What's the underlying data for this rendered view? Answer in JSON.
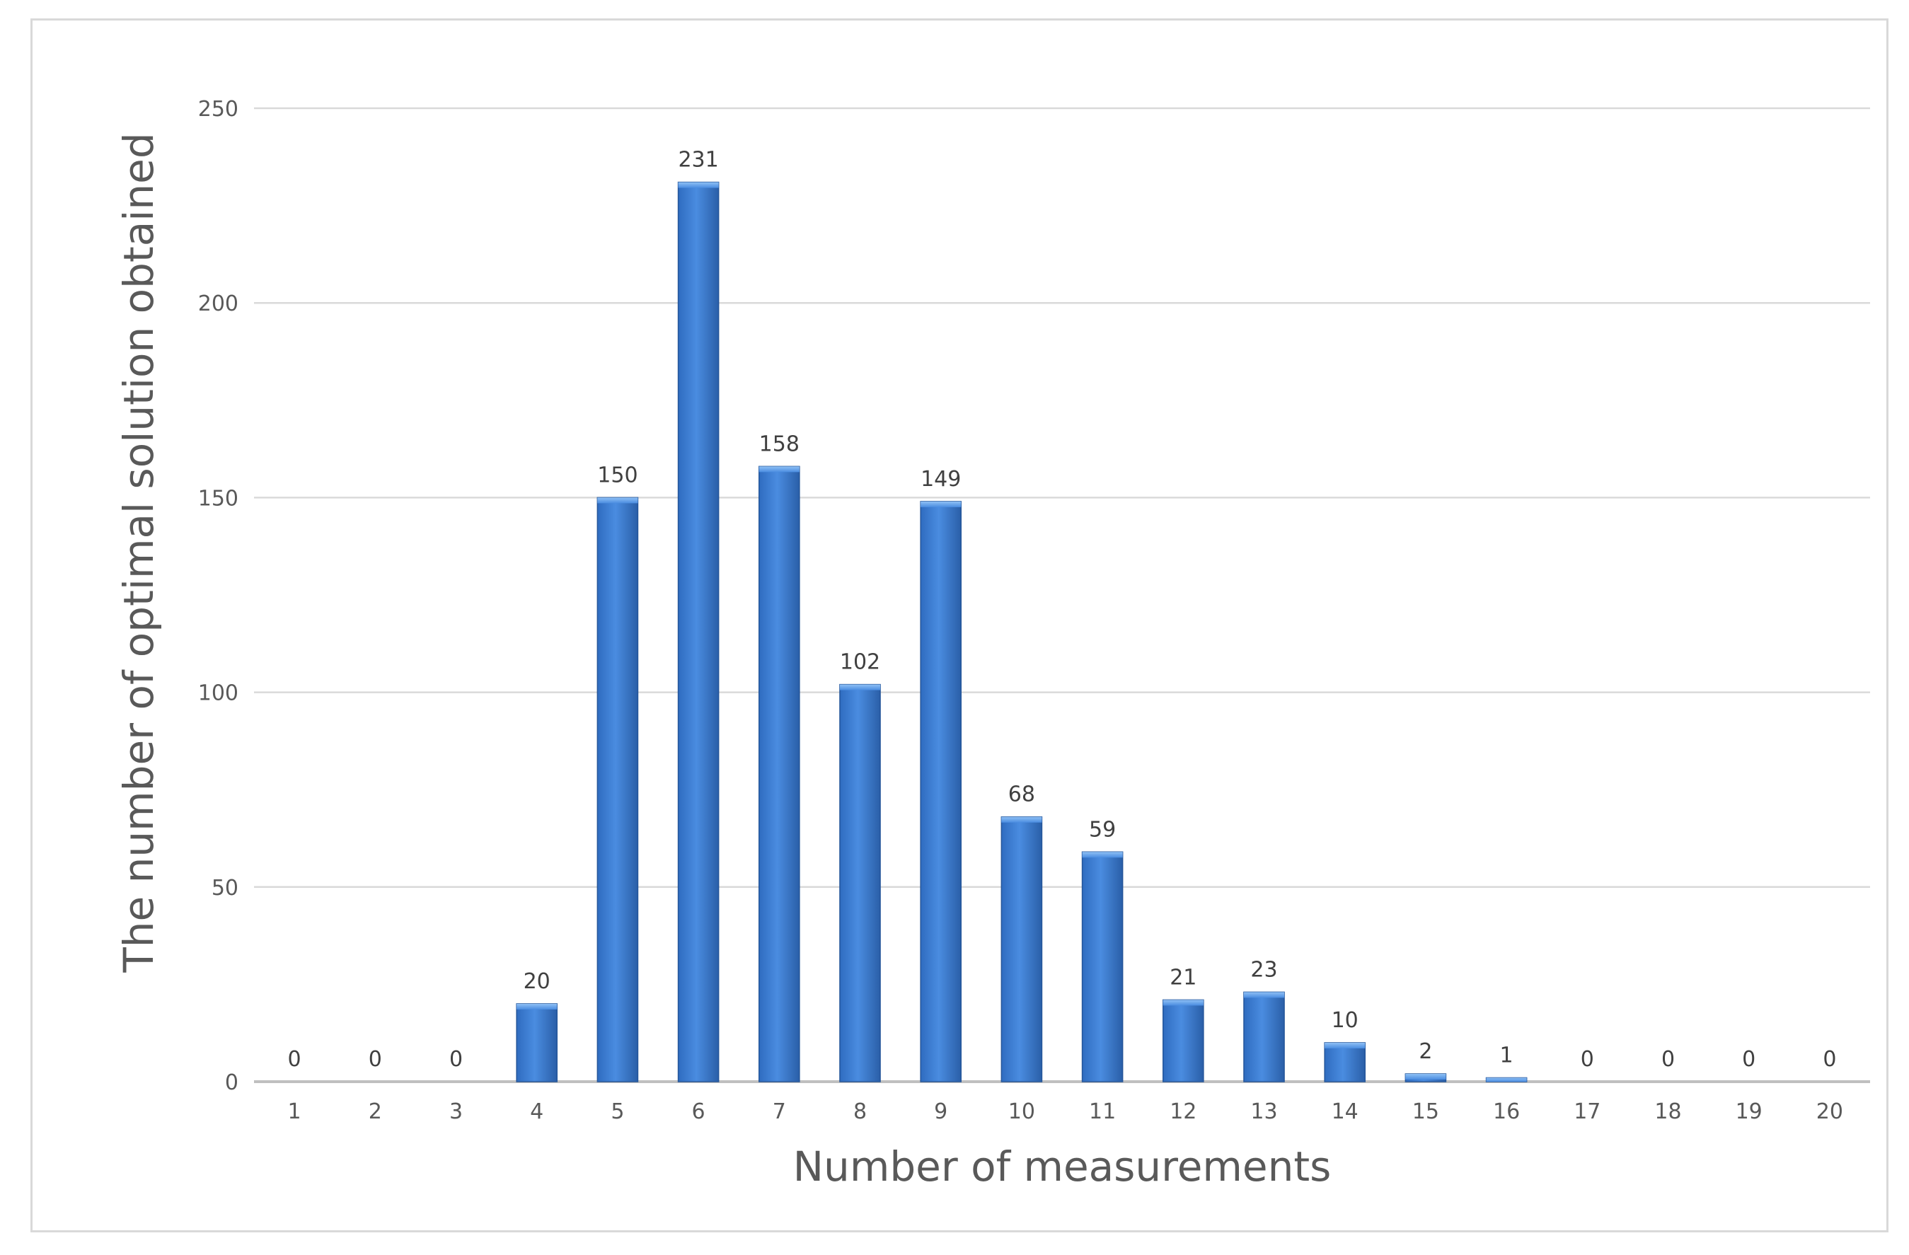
{
  "chart_data": {
    "type": "bar",
    "title": "",
    "xlabel": "Number of measurements",
    "ylabel": "The number of optimal solution obtained",
    "categories": [
      "1",
      "2",
      "3",
      "4",
      "5",
      "6",
      "7",
      "8",
      "9",
      "10",
      "11",
      "12",
      "13",
      "14",
      "15",
      "16",
      "17",
      "18",
      "19",
      "20"
    ],
    "values": [
      0,
      0,
      0,
      20,
      150,
      231,
      158,
      102,
      149,
      68,
      59,
      21,
      23,
      10,
      2,
      1,
      0,
      0,
      0,
      0
    ],
    "ylim": [
      0,
      250
    ],
    "yticks": [
      0,
      50,
      100,
      150,
      200,
      250
    ],
    "grid": true,
    "legend": "none",
    "data_labels": true,
    "bar_color": "#3a78c9",
    "bar_color_light": "#4f93e6",
    "bar_color_dark": "#2a5fa8",
    "grid_color": "#d9d9d9",
    "axis_color": "#bfbfbf"
  }
}
